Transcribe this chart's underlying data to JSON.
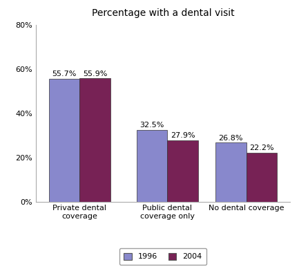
{
  "title": "Percentage with a dental visit",
  "categories": [
    "Private dental\ncoverage",
    "Public dental\ncoverage only",
    "No dental coverage"
  ],
  "series": {
    "1996": [
      55.7,
      32.5,
      26.8
    ],
    "2004": [
      55.9,
      27.9,
      22.2
    ]
  },
  "labels": {
    "1996": [
      "55.7%",
      "32.5%",
      "26.8%"
    ],
    "2004": [
      "55.9%",
      "27.9%",
      "22.2%"
    ]
  },
  "colors": {
    "1996": "#8888cc",
    "2004": "#772255"
  },
  "bar_edge_color": "#333333",
  "ylim": [
    0,
    80
  ],
  "yticks": [
    0,
    20,
    40,
    60,
    80
  ],
  "ytick_labels": [
    "0%",
    "20%",
    "40%",
    "60%",
    "80%"
  ],
  "bar_width": 0.35,
  "title_fontsize": 10,
  "tick_fontsize": 8,
  "label_fontsize": 8,
  "legend_fontsize": 8
}
